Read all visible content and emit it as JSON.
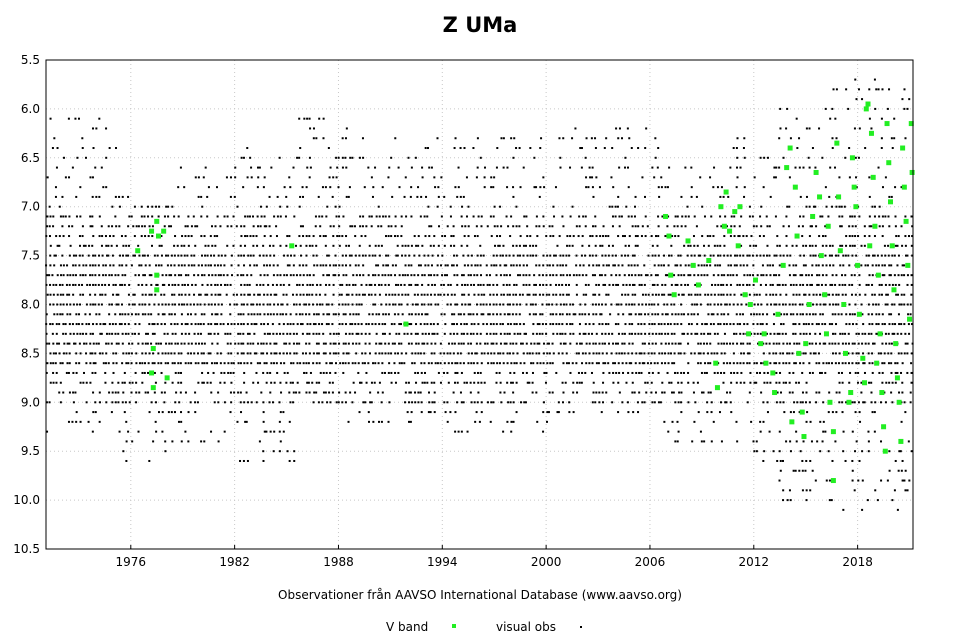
{
  "chart_data": {
    "type": "scatter",
    "title": "Z UMa",
    "xlabel": "Observationer från AAVSO International Database (www.aavso.org)",
    "ylabel": "",
    "xlim": [
      1971.1,
      2021.2
    ],
    "ylim": [
      10.5,
      5.5
    ],
    "y_inverted": true,
    "x_ticks": [
      1976,
      1982,
      1988,
      1994,
      2000,
      2006,
      2012,
      2018
    ],
    "y_ticks": [
      5.5,
      6.0,
      6.5,
      7.0,
      7.5,
      8.0,
      8.5,
      9.0,
      9.5,
      10.0,
      10.5
    ],
    "y_tick_labels": [
      "5.5",
      "6.0",
      "6.5",
      "7.0",
      "7.5",
      "8.0",
      "8.5",
      "9.0",
      "9.5",
      "10.0",
      "10.5"
    ],
    "grid": true,
    "legend_position": "bottom-center",
    "series": [
      {
        "name": "V band",
        "color": "#22ee22",
        "marker": "square",
        "points": [
          [
            1977.2,
            7.25
          ],
          [
            1977.5,
            7.15
          ],
          [
            1977.6,
            7.3
          ],
          [
            1977.9,
            7.25
          ],
          [
            1977.5,
            7.7
          ],
          [
            1977.5,
            7.85
          ],
          [
            1977.3,
            8.45
          ],
          [
            1977.2,
            8.7
          ],
          [
            1977.3,
            8.85
          ],
          [
            1978.1,
            8.75
          ],
          [
            1976.4,
            7.45
          ],
          [
            1985.3,
            7.4
          ],
          [
            1991.9,
            8.2
          ],
          [
            2006.9,
            7.1
          ],
          [
            2007.1,
            7.3
          ],
          [
            2007.2,
            7.7
          ],
          [
            2007.4,
            7.9
          ],
          [
            2008.2,
            7.35
          ],
          [
            2008.5,
            7.6
          ],
          [
            2008.8,
            7.8
          ],
          [
            2009.4,
            7.55
          ],
          [
            2009.8,
            8.6
          ],
          [
            2009.9,
            8.85
          ],
          [
            2010.1,
            7.0
          ],
          [
            2010.3,
            7.2
          ],
          [
            2010.4,
            6.85
          ],
          [
            2010.6,
            7.25
          ],
          [
            2010.9,
            7.05
          ],
          [
            2011.1,
            7.4
          ],
          [
            2011.2,
            7.0
          ],
          [
            2011.5,
            7.9
          ],
          [
            2011.8,
            8.0
          ],
          [
            2011.7,
            8.3
          ],
          [
            2012.4,
            8.4
          ],
          [
            2012.7,
            8.6
          ],
          [
            2012.1,
            7.75
          ],
          [
            2013.1,
            8.7
          ],
          [
            2013.4,
            8.1
          ],
          [
            2013.7,
            7.6
          ],
          [
            2013.9,
            6.6
          ],
          [
            2014.1,
            6.4
          ],
          [
            2014.4,
            6.8
          ],
          [
            2014.5,
            7.3
          ],
          [
            2014.6,
            8.5
          ],
          [
            2014.8,
            9.1
          ],
          [
            2014.9,
            9.35
          ],
          [
            2015.2,
            8.0
          ],
          [
            2015.4,
            7.1
          ],
          [
            2015.6,
            6.65
          ],
          [
            2015.8,
            6.9
          ],
          [
            2015.9,
            7.5
          ],
          [
            2016.1,
            7.9
          ],
          [
            2016.2,
            8.3
          ],
          [
            2016.4,
            9.0
          ],
          [
            2016.6,
            9.3
          ],
          [
            2016.8,
            6.35
          ],
          [
            2016.9,
            6.9
          ],
          [
            2017.0,
            7.45
          ],
          [
            2017.2,
            8.0
          ],
          [
            2017.3,
            8.5
          ],
          [
            2017.5,
            9.0
          ],
          [
            2016.6,
            9.8
          ],
          [
            2017.7,
            6.5
          ],
          [
            2017.8,
            6.8
          ],
          [
            2017.9,
            7.0
          ],
          [
            2018.0,
            7.6
          ],
          [
            2018.1,
            8.1
          ],
          [
            2018.3,
            8.55
          ],
          [
            2018.4,
            8.8
          ],
          [
            2018.5,
            6.0
          ],
          [
            2018.6,
            5.95
          ],
          [
            2018.8,
            6.25
          ],
          [
            2018.9,
            6.7
          ],
          [
            2019.0,
            7.2
          ],
          [
            2019.2,
            7.7
          ],
          [
            2019.3,
            8.3
          ],
          [
            2019.4,
            8.9
          ],
          [
            2019.5,
            9.25
          ],
          [
            2019.6,
            9.5
          ],
          [
            2019.7,
            6.15
          ],
          [
            2019.8,
            6.55
          ],
          [
            2019.9,
            6.95
          ],
          [
            2020.0,
            7.4
          ],
          [
            2020.1,
            7.85
          ],
          [
            2020.2,
            8.4
          ],
          [
            2020.3,
            8.75
          ],
          [
            2020.4,
            9.0
          ],
          [
            2020.5,
            9.4
          ],
          [
            2020.6,
            6.4
          ],
          [
            2020.7,
            6.8
          ],
          [
            2020.8,
            7.15
          ],
          [
            2020.9,
            7.6
          ],
          [
            2021.0,
            8.15
          ],
          [
            2021.1,
            6.15
          ],
          [
            2021.15,
            6.65
          ],
          [
            2019.1,
            8.6
          ],
          [
            2018.7,
            7.4
          ],
          [
            2017.6,
            8.9
          ],
          [
            2016.3,
            7.2
          ],
          [
            2015.0,
            8.4
          ],
          [
            2014.2,
            9.2
          ],
          [
            2013.2,
            8.9
          ],
          [
            2012.6,
            8.3
          ]
        ]
      },
      {
        "name": "visual obs",
        "color": "#000000",
        "marker": "dot",
        "points": []
      }
    ]
  },
  "legend": {
    "items": [
      {
        "label": "V band",
        "color": "#22ee22"
      },
      {
        "label": "visual obs",
        "color": "#000000"
      }
    ]
  }
}
